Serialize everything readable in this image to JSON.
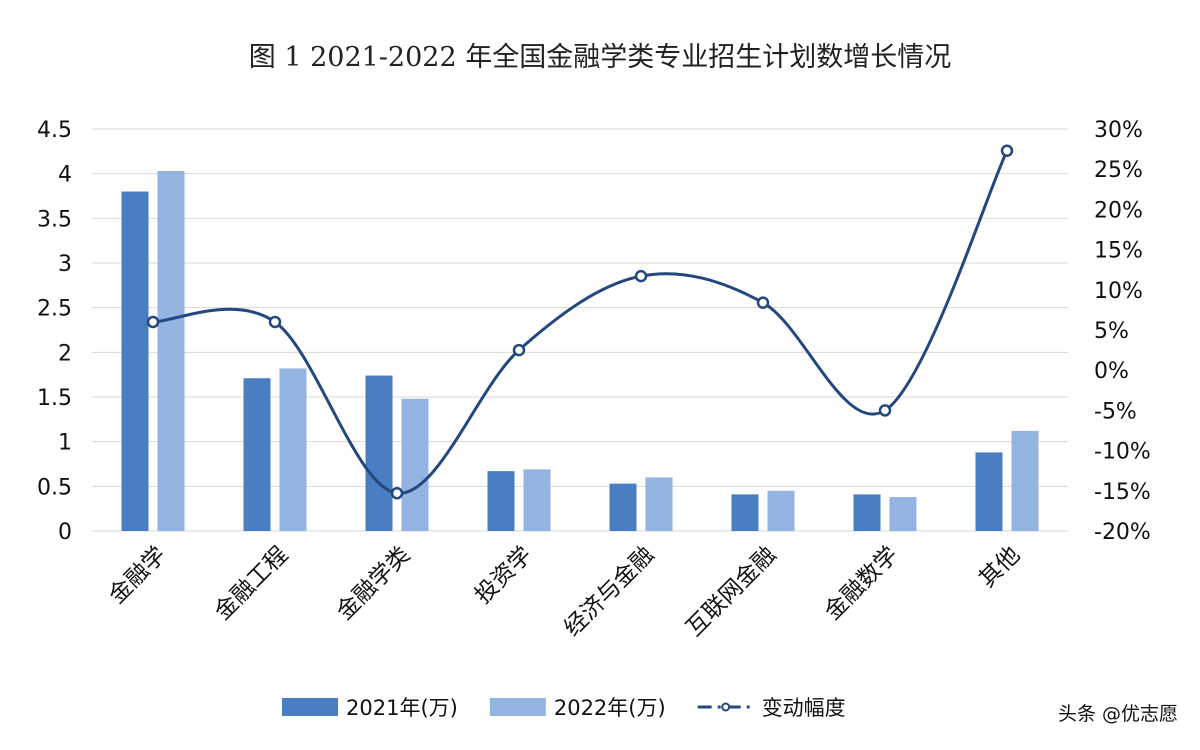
{
  "chart_data": {
    "type": "bar",
    "title": "图 1 2021-2022 年全国金融学类专业招生计划数增长情况",
    "categories": [
      "金融学",
      "金融工程",
      "金融学类",
      "投资学",
      "经济与金融",
      "互联网金融",
      "金融数学",
      "其他"
    ],
    "series": [
      {
        "name": "2021年(万)",
        "type": "bar",
        "axis": "left",
        "color": "#4a7ec3",
        "values": [
          3.8,
          1.71,
          1.74,
          0.67,
          0.53,
          0.41,
          0.41,
          0.88
        ]
      },
      {
        "name": "2022年(万)",
        "type": "bar",
        "axis": "left",
        "color": "#93b4e0",
        "values": [
          4.03,
          1.82,
          1.48,
          0.69,
          0.6,
          0.45,
          0.38,
          1.12
        ]
      },
      {
        "name": "变动幅度",
        "type": "line",
        "axis": "right",
        "color": "#23477f",
        "values": [
          6,
          6,
          -15.3,
          2.5,
          11.7,
          8.4,
          -5,
          27.3
        ]
      }
    ],
    "y_left": {
      "ylim": [
        0,
        4.5
      ],
      "ticks": [
        "0",
        "0.5",
        "1",
        "1.5",
        "2",
        "2.5",
        "3",
        "3.5",
        "4",
        "4.5"
      ]
    },
    "y_right": {
      "ylim": [
        -20,
        30
      ],
      "ticks": [
        "-20%",
        "-15%",
        "-10%",
        "-5%",
        "0%",
        "5%",
        "10%",
        "15%",
        "20%",
        "25%",
        "30%"
      ]
    },
    "grid": true,
    "legend_position": "bottom"
  },
  "watermark": {
    "text": "头条 @优志愿"
  }
}
